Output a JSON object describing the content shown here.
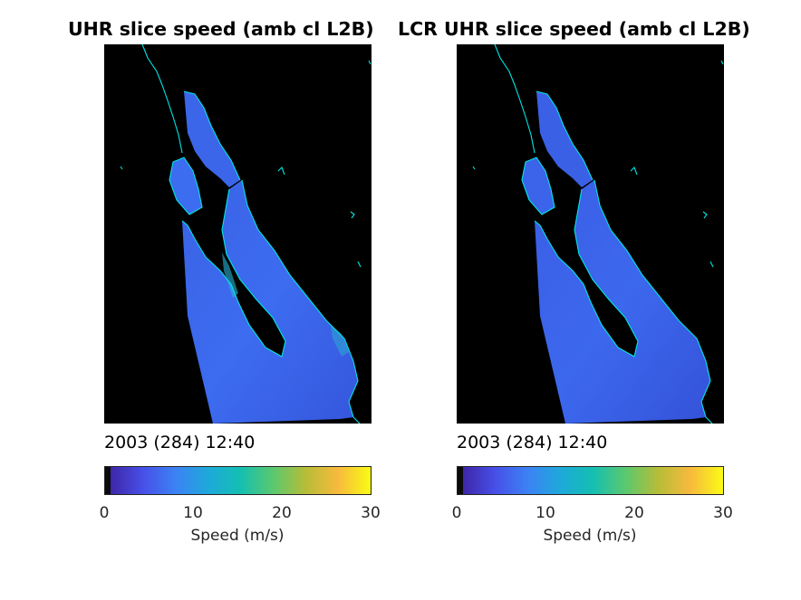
{
  "panels": [
    {
      "title": "UHR slice speed (amb cl L2B)",
      "timestamp": "2003 (284) 12:40",
      "colorbar": {
        "ticks": [
          "0",
          "10",
          "20",
          "30"
        ],
        "label": "Speed (m/s)",
        "min": 0,
        "max": 30
      }
    },
    {
      "title": "LCR UHR slice speed (amb cl L2B)",
      "timestamp": "2003 (284) 12:40",
      "colorbar": {
        "ticks": [
          "0",
          "10",
          "20",
          "30"
        ],
        "label": "Speed (m/s)",
        "min": 0,
        "max": 30
      }
    }
  ],
  "colors": {
    "background_map": "#000000",
    "coastline": "#00e5e5",
    "speed_fill": "#3a6cf2",
    "speed_fill_dark": "#3452d8",
    "colormap": [
      "#0b0b0b",
      "#3e26a8",
      "#4750e8",
      "#3c82f4",
      "#1ea9da",
      "#14bfb2",
      "#5bc86f",
      "#b6bd38",
      "#f8ba3d",
      "#f9fb15"
    ]
  }
}
